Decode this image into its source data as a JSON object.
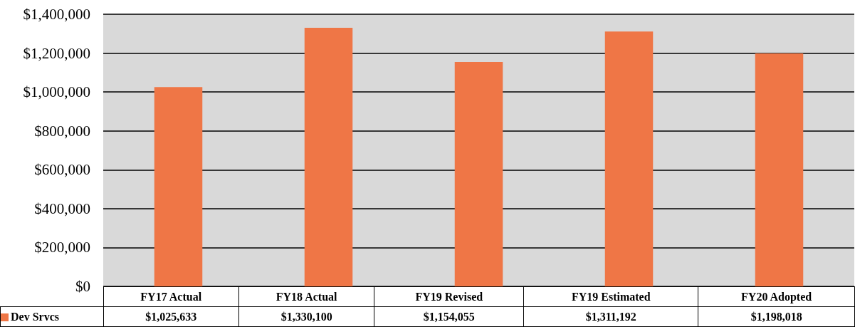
{
  "chart_data": {
    "type": "bar",
    "categories": [
      "FY17 Actual",
      "FY18 Actual",
      "FY19 Revised",
      "FY19 Estimated",
      "FY20 Adopted"
    ],
    "series": [
      {
        "name": "Dev Srvcs",
        "color": "#ef7646",
        "values": [
          1025633,
          1330100,
          1154055,
          1311192,
          1198018
        ],
        "value_labels": [
          "$1,025,633",
          "$1,330,100",
          "$1,154,055",
          "$1,311,192",
          "$1,198,018"
        ]
      }
    ],
    "ylim": [
      0,
      1400000
    ],
    "yticks": [
      {
        "value": 0,
        "label": "$0"
      },
      {
        "value": 200000,
        "label": "$200,000"
      },
      {
        "value": 400000,
        "label": "$400,000"
      },
      {
        "value": 600000,
        "label": "$600,000"
      },
      {
        "value": 800000,
        "label": "$800,000"
      },
      {
        "value": 1000000,
        "label": "$1,000,000"
      },
      {
        "value": 1200000,
        "label": "$1,200,000"
      },
      {
        "value": 1400000,
        "label": "$1,400,000"
      }
    ],
    "grid": "y",
    "legend": "bottom left"
  }
}
